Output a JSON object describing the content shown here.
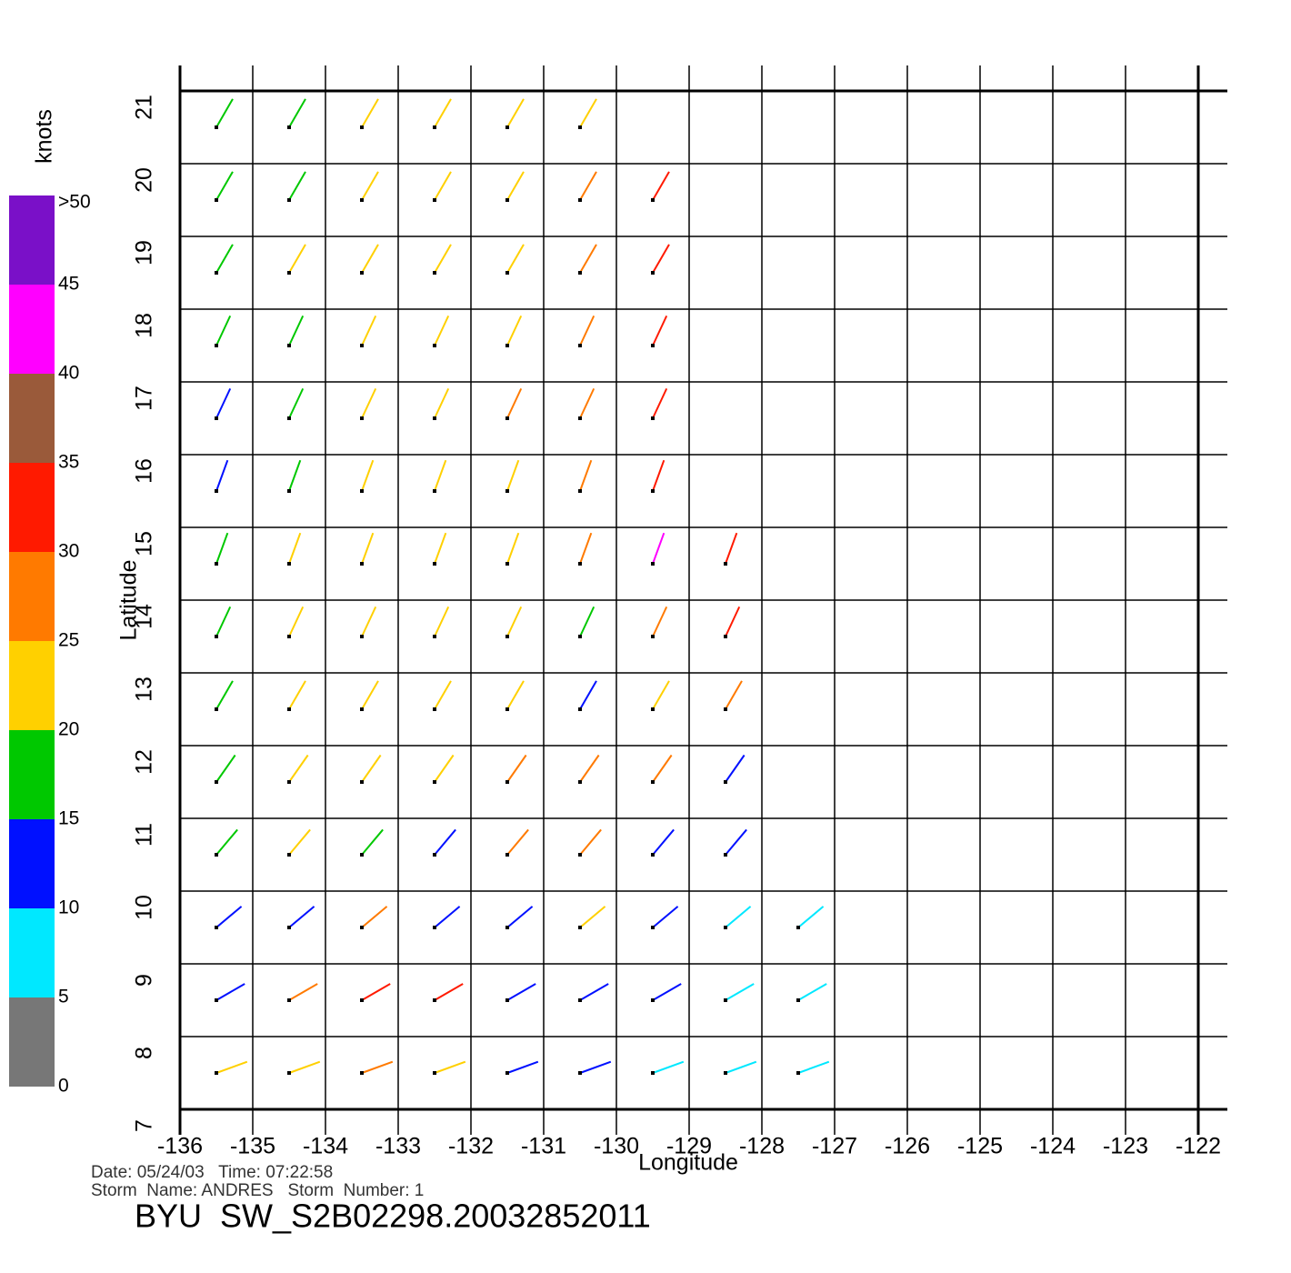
{
  "chart_data": {
    "type": "wind-vectors",
    "xlabel": "Longitude",
    "ylabel": "Latitude",
    "xlim": [
      -136,
      -122
    ],
    "ylim": [
      7,
      21
    ],
    "xticks": [
      -136,
      -135,
      -134,
      -133,
      -132,
      -131,
      -130,
      -129,
      -128,
      -127,
      -126,
      -125,
      -124,
      -123,
      -122
    ],
    "yticks": [
      7,
      8,
      9,
      10,
      11,
      12,
      13,
      14,
      15,
      16,
      17,
      18,
      19,
      20,
      21
    ],
    "grid": true,
    "lons": [
      -135.5,
      -134.5,
      -133.5,
      -132.5,
      -131.5,
      -130.5,
      -129.5,
      -128.5,
      -127.5
    ],
    "lats": [
      7.5,
      8.5,
      9.5,
      10.5,
      11.5,
      12.5,
      13.5,
      14.5,
      15.5,
      16.5,
      17.5,
      18.5,
      19.5,
      20.5
    ],
    "direction": [
      20,
      30,
      40,
      50,
      55,
      60,
      65,
      70,
      70,
      65,
      65,
      60,
      60,
      60
    ],
    "speed": [
      [
        20,
        22,
        25,
        22,
        12,
        10,
        9,
        8,
        7
      ],
      [
        12,
        25,
        32,
        30,
        13,
        11,
        10,
        9,
        8
      ],
      [
        12,
        13,
        28,
        14,
        12,
        22,
        10,
        9,
        8
      ],
      [
        17,
        20,
        18,
        13,
        27,
        26,
        12,
        11,
        null
      ],
      [
        18,
        22,
        20,
        21,
        25,
        28,
        27,
        12,
        null
      ],
      [
        19,
        22,
        23,
        22,
        21,
        12,
        24,
        26,
        null
      ],
      [
        17,
        21,
        22,
        23,
        22,
        18,
        28,
        30,
        null
      ],
      [
        16,
        20,
        22,
        23,
        24,
        27,
        42,
        33,
        null
      ],
      [
        14,
        18,
        21,
        23,
        24,
        26,
        33,
        null,
        null
      ],
      [
        13,
        19,
        22,
        24,
        25,
        28,
        31,
        null,
        null
      ],
      [
        18,
        19,
        21,
        23,
        24,
        25,
        30,
        null,
        null
      ],
      [
        17,
        20,
        22,
        24,
        24,
        26,
        31,
        null,
        null
      ],
      [
        16,
        18,
        20,
        22,
        23,
        25,
        31,
        null,
        null
      ],
      [
        17,
        19,
        21,
        22,
        23,
        24,
        null,
        null,
        null
      ]
    ],
    "colorbar": {
      "label": "knots",
      "ticks": [
        0,
        5,
        10,
        15,
        20,
        25,
        30,
        35,
        40,
        45,
        {
          "value": 50,
          "label": ">50"
        }
      ],
      "colors": [
        "#777777",
        "#00e8ff",
        "#0010ff",
        "#00c800",
        "#ffd000",
        "#ff7a00",
        "#ff1a00",
        "#9a5a3a",
        "#ff00ff",
        "#7a10c8"
      ]
    },
    "date_line": "Date: 05/24/03   Time: 07:22:58",
    "storm_line": "Storm  Name: ANDRES   Storm  Number: 1",
    "file_title": "BYU  SW_S2B02298.20032852011"
  }
}
